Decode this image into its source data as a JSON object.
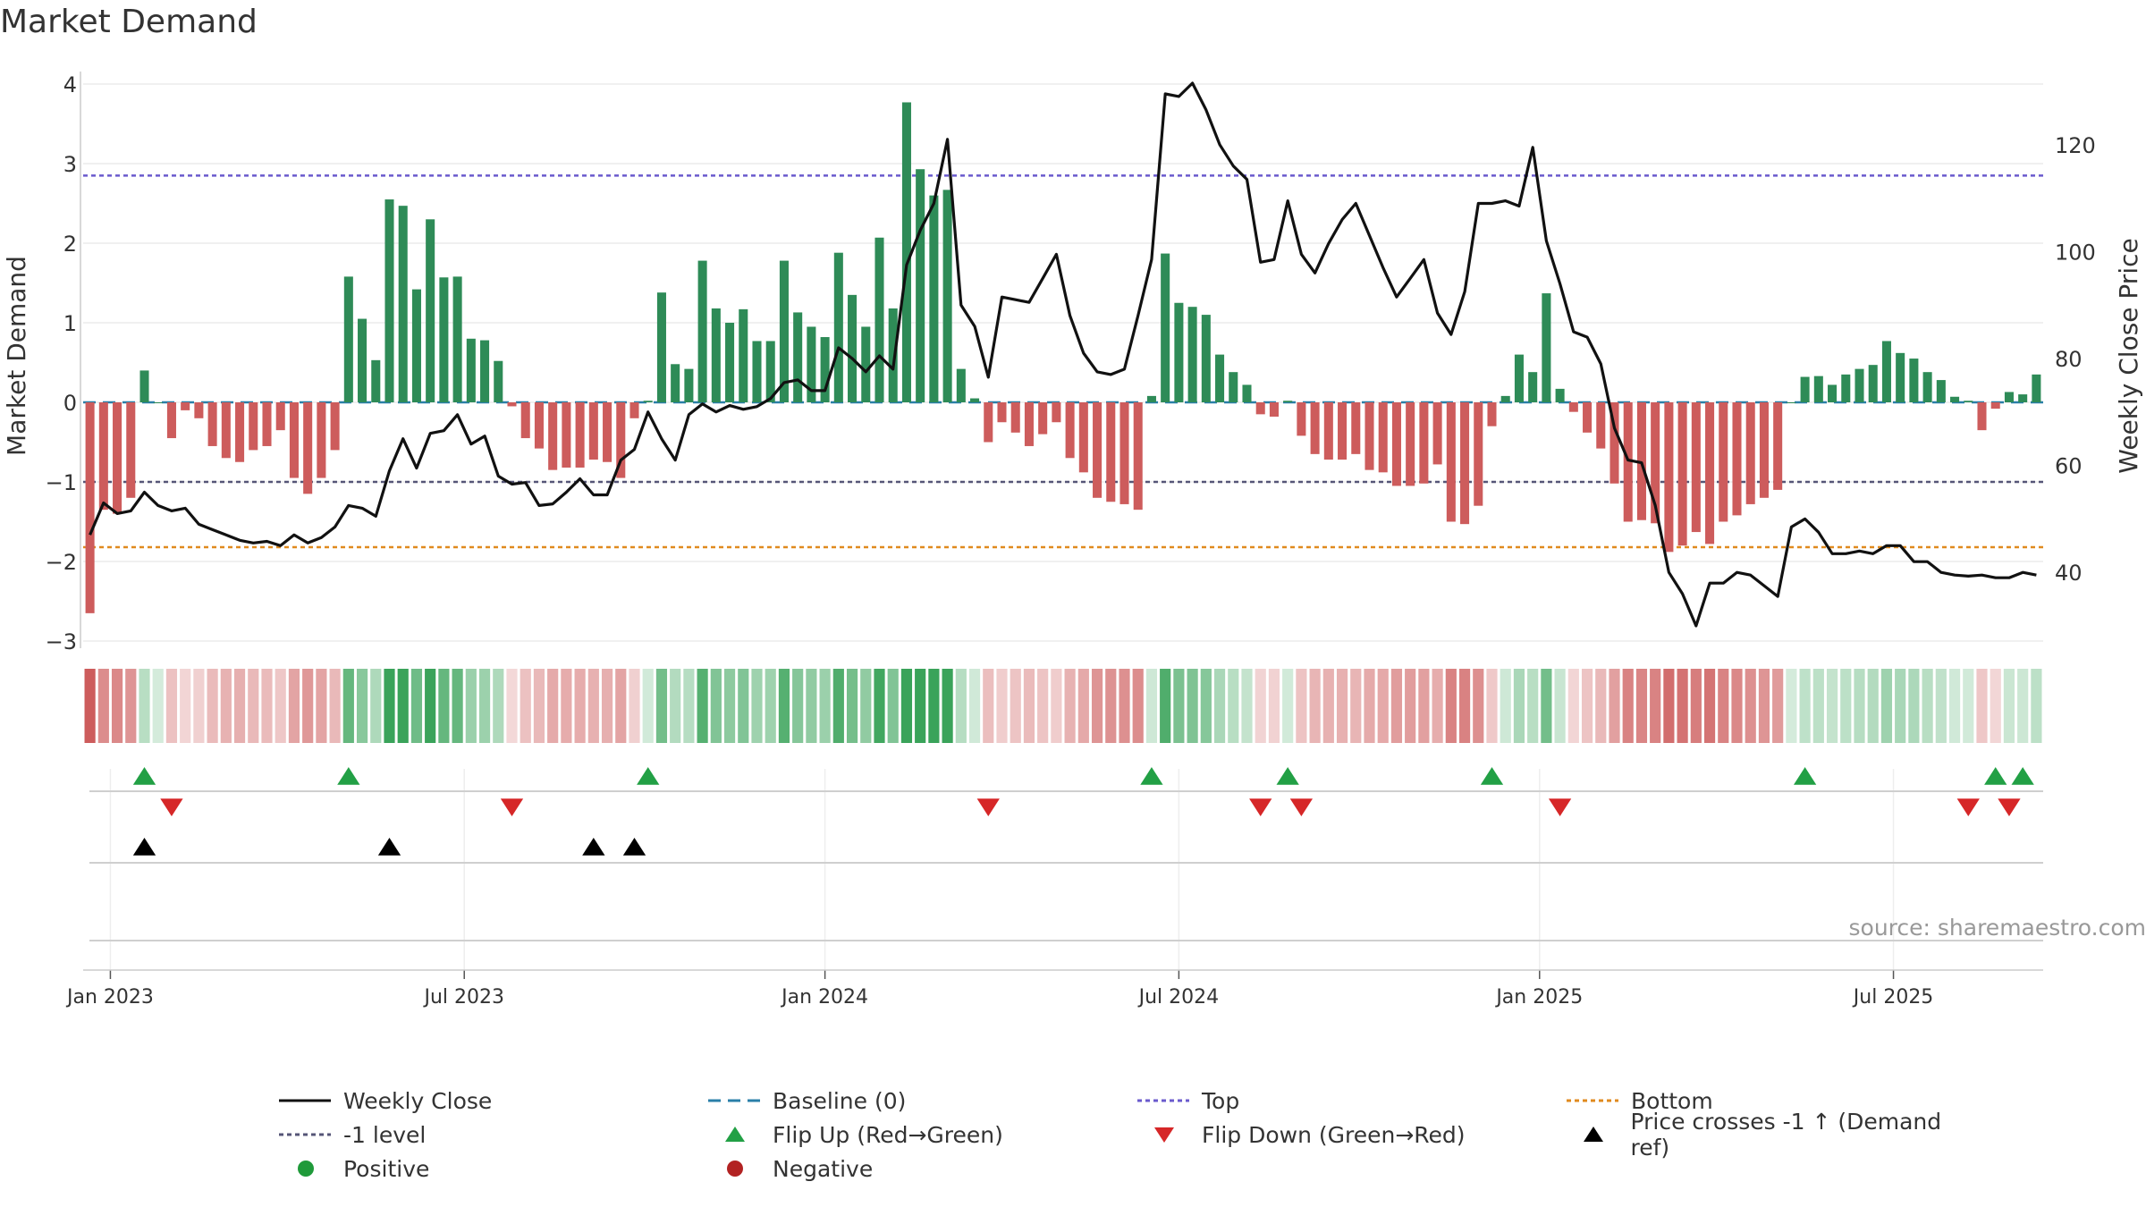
{
  "title": "Market Demand",
  "source_note": "source: sharemaestro.com",
  "colors": {
    "positive_bar": "#2e8b57",
    "negative_bar": "#cd5c5c",
    "line": "#111111",
    "top_line": "#6a5acd",
    "minus_one_line": "#555577",
    "bottom_line": "#e08a1e",
    "baseline": "#2a7fa8",
    "flip_up": "#22a045",
    "flip_down": "#d62728",
    "cross_marker": "#000000",
    "positive_dot": "#1f9a3a",
    "negative_dot": "#b22222"
  },
  "legend": [
    {
      "label": "Weekly Close",
      "kind": "line",
      "color": "#111111",
      "dash": ""
    },
    {
      "label": "Baseline (0)",
      "kind": "line",
      "color": "#2a7fa8",
      "dash": "14,8"
    },
    {
      "label": "Top",
      "kind": "line",
      "color": "#6a5acd",
      "dash": "5,4"
    },
    {
      "label": "Bottom",
      "kind": "line",
      "color": "#e08a1e",
      "dash": "5,4"
    },
    {
      "label": "-1 level",
      "kind": "line",
      "color": "#555577",
      "dash": "5,4"
    },
    {
      "label": "Flip Up (Red→Green)",
      "kind": "tri-up",
      "color": "#22a045"
    },
    {
      "label": "Flip Down (Green→Red)",
      "kind": "tri-down",
      "color": "#d62728"
    },
    {
      "label": "Price crosses -1 ↑ (Demand ref)",
      "kind": "tri-up",
      "color": "#000000"
    },
    {
      "label": "Positive",
      "kind": "dot",
      "color": "#1f9a3a"
    },
    {
      "label": "Negative",
      "kind": "dot",
      "color": "#b22222"
    }
  ],
  "chart_data": {
    "type": "bar",
    "title": "Market Demand",
    "ylabel": "Market Demand",
    "y2label": "Weekly Close Price",
    "ylim": [
      -3,
      4
    ],
    "y2lim": [
      30,
      132
    ],
    "yticks": [
      -3,
      -2,
      -1,
      0,
      1,
      2,
      3,
      4
    ],
    "ytick_labels": [
      "−3",
      "−2",
      "−1",
      "0",
      "1",
      "2",
      "3",
      "4"
    ],
    "y2ticks": [
      40,
      60,
      80,
      100,
      120
    ],
    "x_ticks": [
      {
        "label": "Jan 2023",
        "week": 2
      },
      {
        "label": "Jul 2023",
        "week": 28
      },
      {
        "label": "Jan 2024",
        "week": 54.5
      },
      {
        "label": "Jul 2024",
        "week": 80.5
      },
      {
        "label": "Jan 2025",
        "week": 107
      },
      {
        "label": "Jul 2025",
        "week": 133
      }
    ],
    "reference_lines": {
      "top": 2.85,
      "minus_one": -1.0,
      "bottom": -1.82,
      "baseline": 0
    },
    "demand": [
      -2.65,
      -1.35,
      -1.4,
      -1.2,
      0.4,
      0,
      -0.45,
      -0.1,
      -0.2,
      -0.55,
      -0.7,
      -0.75,
      -0.6,
      -0.55,
      -0.35,
      -0.95,
      -1.15,
      -0.95,
      -0.6,
      1.58,
      1.05,
      0.53,
      2.55,
      2.47,
      1.42,
      2.3,
      1.57,
      1.58,
      0.8,
      0.78,
      0.52,
      -0.05,
      -0.45,
      -0.58,
      -0.85,
      -0.82,
      -0.82,
      -0.72,
      -0.75,
      -0.95,
      -0.2,
      0.02,
      1.38,
      0.48,
      0.42,
      1.78,
      1.18,
      1.0,
      1.17,
      0.77,
      0.77,
      1.78,
      1.13,
      0.95,
      0.82,
      1.88,
      1.35,
      0.95,
      2.07,
      1.18,
      3.77,
      2.93,
      2.6,
      2.67,
      0.42,
      0.05,
      -0.5,
      -0.25,
      -0.38,
      -0.55,
      -0.4,
      -0.25,
      -0.7,
      -0.88,
      -1.2,
      -1.25,
      -1.28,
      -1.35,
      0.08,
      1.87,
      1.25,
      1.2,
      1.1,
      0.6,
      0.38,
      0.22,
      -0.15,
      -0.18,
      0.02,
      -0.42,
      -0.65,
      -0.72,
      -0.72,
      -0.65,
      -0.85,
      -0.88,
      -1.05,
      -1.05,
      -1.02,
      -0.78,
      -1.5,
      -1.53,
      -1.3,
      -0.3,
      0.08,
      0.6,
      0.38,
      1.37,
      0.17,
      -0.12,
      -0.38,
      -0.58,
      -1.02,
      -1.5,
      -1.48,
      -1.52,
      -1.88,
      -1.8,
      -1.63,
      -1.78,
      -1.5,
      -1.42,
      -1.28,
      -1.2,
      -1.1,
      0.0,
      0.32,
      0.33,
      0.22,
      0.35,
      0.42,
      0.47,
      0.77,
      0.62,
      0.55,
      0.38,
      0.28,
      0.07,
      0.02,
      -0.35,
      -0.08,
      0.13,
      0.1,
      0.35
    ],
    "weekly_close": [
      47,
      53,
      51,
      51.5,
      55,
      52.5,
      51.5,
      52,
      49,
      48,
      47,
      46,
      45.5,
      45.8,
      45,
      47,
      45.5,
      46.5,
      48.5,
      52.5,
      52,
      50.5,
      59,
      65,
      59.5,
      66,
      66.5,
      69.5,
      64,
      65.5,
      58,
      56.5,
      56.8,
      52.5,
      52.8,
      55,
      57.5,
      54.5,
      54.5,
      61,
      63,
      70,
      65,
      61,
      69.5,
      71.5,
      70,
      71.2,
      70.5,
      71,
      72.5,
      75.5,
      76,
      74,
      74,
      82,
      80,
      77.5,
      80.5,
      78,
      97.5,
      104,
      109,
      121,
      90,
      86,
      76.5,
      91.5,
      91,
      90.5,
      95,
      99.5,
      88,
      81,
      77.5,
      77,
      78,
      88,
      98.5,
      129.5,
      129,
      131.5,
      126.5,
      120,
      116,
      113.5,
      98,
      98.5,
      109.5,
      99.5,
      96,
      101.5,
      106,
      109,
      103,
      97,
      91.5,
      95,
      98.5,
      88.5,
      84.5,
      92.5,
      109,
      109,
      109.5,
      108.5,
      119.5,
      102,
      94,
      85,
      84,
      79,
      67,
      61,
      60.5,
      52.5,
      40,
      36,
      30,
      38,
      38,
      40,
      39.5,
      37.5,
      35.5,
      48.5,
      50,
      47.5,
      43.5,
      43.5,
      44,
      43.5,
      45,
      45,
      42,
      42,
      40,
      39.5,
      39.3,
      39.5,
      39,
      39,
      40,
      39.5
    ],
    "flip_up_weeks": [
      4,
      19,
      41,
      78,
      88,
      103,
      126,
      140,
      142
    ],
    "flip_down_weeks": [
      6,
      31,
      66,
      86,
      89,
      108,
      138,
      141
    ],
    "price_cross_weeks": [
      4,
      22,
      37,
      40
    ],
    "heat_strip": [
      -2.65,
      -1.35,
      -1.4,
      -1.2,
      0.4,
      0,
      -0.45,
      -0.1,
      -0.2,
      -0.55,
      -0.7,
      -0.75,
      -0.6,
      -0.55,
      -0.35,
      -0.95,
      -1.15,
      -0.95,
      -0.6,
      1.58,
      1.05,
      0.53,
      2.55,
      2.47,
      1.42,
      2.3,
      1.57,
      1.58,
      0.8,
      0.78,
      0.52,
      -0.05,
      -0.45,
      -0.58,
      -0.85,
      -0.82,
      -0.82,
      -0.72,
      -0.75,
      -0.95,
      -0.2,
      0.02,
      1.38,
      0.48,
      0.42,
      1.78,
      1.18,
      1.0,
      1.17,
      0.77,
      0.77,
      1.78,
      1.13,
      0.95,
      0.82,
      1.88,
      1.35,
      0.95,
      2.07,
      1.18,
      3.77,
      2.93,
      2.6,
      2.67,
      0.42,
      0.05,
      -0.5,
      -0.25,
      -0.38,
      -0.55,
      -0.4,
      -0.25,
      -0.7,
      -0.88,
      -1.2,
      -1.25,
      -1.28,
      -1.35,
      0.08,
      1.87,
      1.25,
      1.2,
      1.1,
      0.6,
      0.38,
      0.22,
      -0.15,
      -0.18,
      0.02,
      -0.42,
      -0.65,
      -0.72,
      -0.72,
      -0.65,
      -0.85,
      -0.88,
      -1.05,
      -1.05,
      -1.02,
      -0.78,
      -1.5,
      -1.53,
      -1.3,
      -0.3,
      0.08,
      0.6,
      0.38,
      1.37,
      0.17,
      -0.12,
      -0.38,
      -0.58,
      -1.02,
      -1.5,
      -1.48,
      -1.52,
      -1.88,
      -1.8,
      -1.63,
      -1.78,
      -1.5,
      -1.42,
      -1.28,
      -1.2,
      -1.1,
      0.0,
      0.32,
      0.33,
      0.22,
      0.35,
      0.42,
      0.47,
      0.77,
      0.62,
      0.55,
      0.38,
      0.28,
      0.07,
      0.02,
      -0.35,
      -0.08,
      0.13,
      0.1,
      0.35
    ]
  }
}
